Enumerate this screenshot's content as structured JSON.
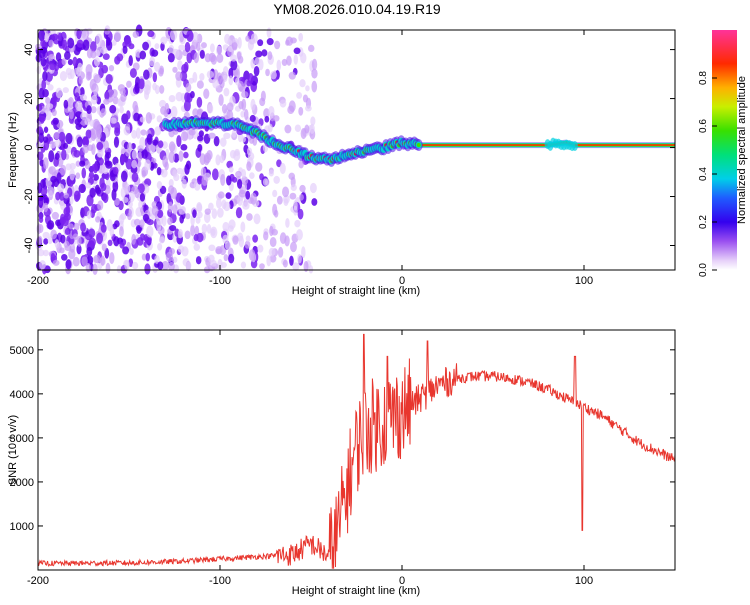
{
  "figure_title": "YM08.2026.010.04.19.R19",
  "chart_data": [
    {
      "type": "heatmap",
      "id": "spectrogram",
      "xlabel": "Height of straight line (km)",
      "ylabel": "Frequency (Hz)",
      "xlim": [
        -200,
        150
      ],
      "ylim": [
        -50,
        48
      ],
      "xticks": [
        -200,
        -100,
        0,
        100
      ],
      "yticks": [
        -40,
        -20,
        0,
        20,
        40
      ],
      "colorbar": {
        "label": "Normalized spectral amplitude",
        "range": [
          0,
          1
        ],
        "ticks": [
          0.0,
          0.2,
          0.4,
          0.6,
          0.8
        ]
      },
      "ridge": {
        "description_x": [
          -130,
          -115,
          -100,
          -90,
          -80,
          -70,
          -60,
          -50,
          -40,
          -30,
          -20,
          -10,
          0,
          10,
          50,
          80,
          90,
          95,
          100,
          150
        ],
        "frequency_hz": [
          9,
          10,
          10,
          9,
          6,
          2,
          -1,
          -4,
          -5,
          -3,
          -1,
          0,
          2,
          1,
          1,
          1,
          2,
          1,
          1,
          1
        ]
      },
      "noise_region_x": [
        -200,
        -48
      ]
    },
    {
      "type": "line",
      "id": "snr",
      "xlabel": "Height of straight line (km)",
      "ylabel": "SNR (10 * v/v)",
      "xlim": [
        -200,
        150
      ],
      "ylim": [
        0,
        5450
      ],
      "xticks": [
        -200,
        -100,
        0,
        100
      ],
      "yticks": [
        1000,
        2000,
        3000,
        4000,
        5000
      ],
      "color": "#e8362e",
      "series": [
        {
          "name": "SNR",
          "x": [
            -200,
            -150,
            -120,
            -100,
            -80,
            -60,
            -50,
            -40,
            -35,
            -30,
            -25,
            -20,
            -15,
            -10,
            -5,
            0,
            10,
            20,
            30,
            40,
            50,
            60,
            70,
            80,
            90,
            100,
            110,
            120,
            130,
            140,
            150
          ],
          "y": [
            150,
            160,
            200,
            250,
            300,
            350,
            600,
            300,
            900,
            1900,
            2800,
            3200,
            3300,
            3400,
            3500,
            3600,
            3900,
            4200,
            4350,
            4400,
            4400,
            4350,
            4250,
            4100,
            3900,
            3700,
            3500,
            3200,
            2900,
            2700,
            2500
          ]
        }
      ],
      "spikes": [
        {
          "x": -21,
          "y": 5350
        },
        {
          "x": -8,
          "y": 4850
        },
        {
          "x": 14,
          "y": 5200
        },
        {
          "x": 95,
          "y": 4850
        },
        {
          "x": 99,
          "y": 900
        }
      ]
    }
  ]
}
